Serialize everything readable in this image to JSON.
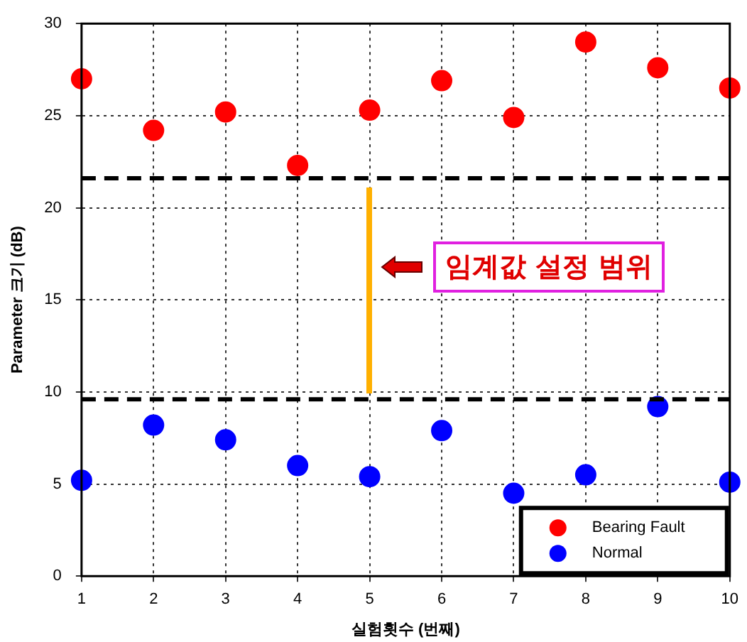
{
  "chart_data": {
    "type": "scatter",
    "xlabel": "실험횟수 (번째)",
    "ylabel": "Parameter 크기 (dB)",
    "x": [
      1,
      2,
      3,
      4,
      5,
      6,
      7,
      8,
      9,
      10
    ],
    "series": [
      {
        "name": "Bearing Fault",
        "color": "#ff0000",
        "values": [
          27.0,
          24.2,
          25.2,
          22.3,
          25.3,
          26.9,
          24.9,
          29.0,
          27.6,
          26.5
        ]
      },
      {
        "name": "Normal",
        "color": "#0000ff",
        "values": [
          5.2,
          8.2,
          7.4,
          6.0,
          5.4,
          7.9,
          4.5,
          5.5,
          9.2,
          5.1
        ]
      }
    ],
    "xlim": [
      1,
      10
    ],
    "xticks": [
      1,
      2,
      3,
      4,
      5,
      6,
      7,
      8,
      9,
      10
    ],
    "ylim": [
      0,
      30
    ],
    "yticks": [
      0,
      5,
      10,
      15,
      20,
      25,
      30
    ],
    "ref_lines": [
      {
        "axis": "y",
        "value": 21.6,
        "color": "#000000",
        "line_style": "dashed"
      },
      {
        "axis": "y",
        "value": 9.6,
        "color": "#000000",
        "line_style": "dashed"
      }
    ],
    "annotations": [
      "임계값 설정 범위"
    ],
    "grid": true,
    "legend": "bottom right",
    "marker": "circle"
  }
}
